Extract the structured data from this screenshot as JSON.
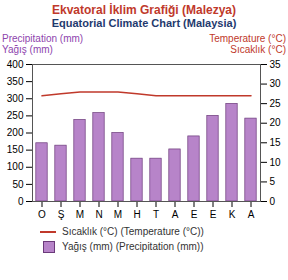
{
  "chart_data": {
    "type": "bar",
    "title": "Ekvatoral İklim Grafiği (Malezya)",
    "subtitle": "Equatorial Climate Chart (Malaysia)",
    "ylabel": "Precipitation (mm)\nYağış (mm)",
    "y2label": "Temperature (°C)\nSıcaklık (°C)",
    "categories": [
      "O",
      "Ş",
      "M",
      "N",
      "M",
      "H",
      "T",
      "A",
      "E",
      "E",
      "K",
      "A"
    ],
    "series": [
      {
        "name": "Sıcaklık (°C) (Temperature (°C))",
        "type": "line",
        "axis": "y2",
        "color": "#c0392b",
        "values": [
          27,
          27.5,
          28,
          28,
          28,
          27.5,
          27,
          27,
          27,
          27,
          27,
          27
        ]
      },
      {
        "name": "Yağış (mm) (Precipitation (mm))",
        "type": "bar",
        "color": "#b784c9",
        "values": [
          170,
          163,
          238,
          258,
          200,
          125,
          125,
          152,
          190,
          250,
          285,
          242
        ]
      }
    ],
    "ylim": [
      0,
      400
    ],
    "yticks": [
      0,
      50,
      100,
      150,
      200,
      250,
      300,
      350,
      400
    ],
    "y2lim": [
      0,
      35
    ],
    "y2ticks": [
      0,
      5,
      10,
      15,
      20,
      25,
      30,
      35
    ],
    "grid": false,
    "legend": "bottom"
  }
}
